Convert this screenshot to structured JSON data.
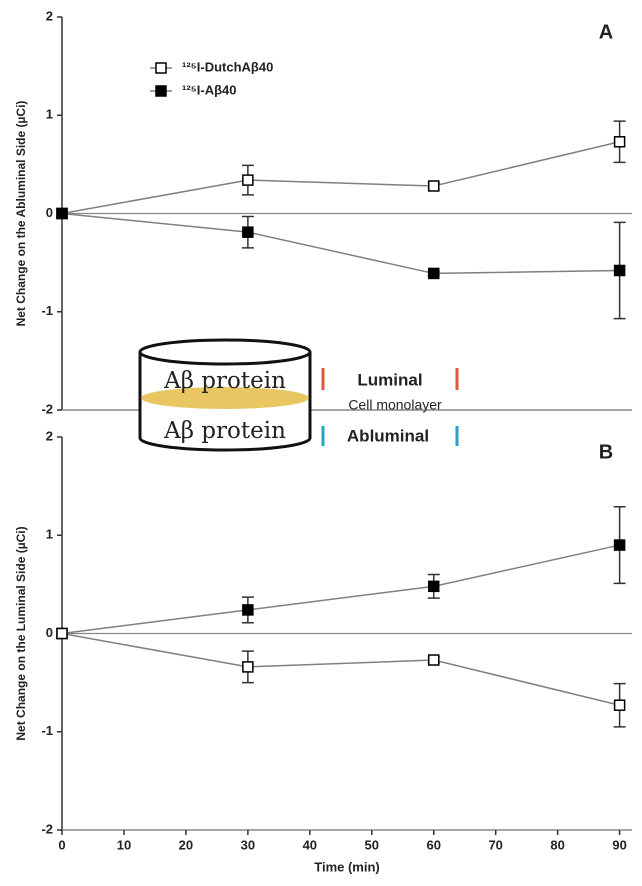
{
  "chart_data": [
    {
      "type": "line",
      "panel_label": "A",
      "ylabel": "Net Change on the Abluminal Side (µCi)",
      "x": [
        0,
        30,
        60,
        90
      ],
      "xlim": [
        0,
        92
      ],
      "ylim": [
        -2,
        2
      ],
      "yticks": [
        -2,
        -1,
        0,
        1,
        2
      ],
      "zero_line": true,
      "legend": "upper left",
      "series": [
        {
          "name": "¹²⁵I-DutchAβ40",
          "color": "#000000",
          "marker_fill": "#ffffff",
          "line_color": "#808080",
          "values": [
            0,
            0.34,
            0.28,
            0.73
          ],
          "errors": [
            null,
            0.15,
            0.03,
            0.21
          ]
        },
        {
          "name": "¹²⁵I-Aβ40",
          "color": "#000000",
          "marker_fill": "#000000",
          "line_color": "#808080",
          "values": [
            0,
            -0.19,
            -0.61,
            -0.58
          ],
          "errors": [
            null,
            0.16,
            0.02,
            0.49
          ]
        }
      ]
    },
    {
      "type": "line",
      "panel_label": "B",
      "ylabel": "Net Change on the Luminal Side (µCi)",
      "xlabel": "Time (min)",
      "x": [
        0,
        30,
        60,
        90
      ],
      "xlim": [
        0,
        92
      ],
      "xticks": [
        0,
        10,
        20,
        30,
        40,
        50,
        60,
        70,
        80,
        90
      ],
      "ylim": [
        -2,
        2
      ],
      "yticks": [
        -2,
        -1,
        0,
        1,
        2
      ],
      "zero_line": true,
      "series": [
        {
          "name": "¹²⁵I-Aβ40",
          "color": "#000000",
          "marker_fill": "#000000",
          "line_color": "#808080",
          "values": [
            0,
            0.24,
            0.48,
            0.9
          ],
          "errors": [
            null,
            0.13,
            0.12,
            0.39
          ]
        },
        {
          "name": "¹²⁵I-DutchAβ40",
          "color": "#000000",
          "marker_fill": "#ffffff",
          "line_color": "#808080",
          "values": [
            0,
            -0.34,
            -0.27,
            -0.73
          ],
          "errors": [
            null,
            0.16,
            0.03,
            0.22
          ]
        }
      ]
    }
  ],
  "inset": {
    "upper_text": "Aβ protein",
    "lower_text": "Aβ protein",
    "luminal": "Luminal",
    "monolayer": "Cell monolayer",
    "abluminal": "Abluminal"
  }
}
